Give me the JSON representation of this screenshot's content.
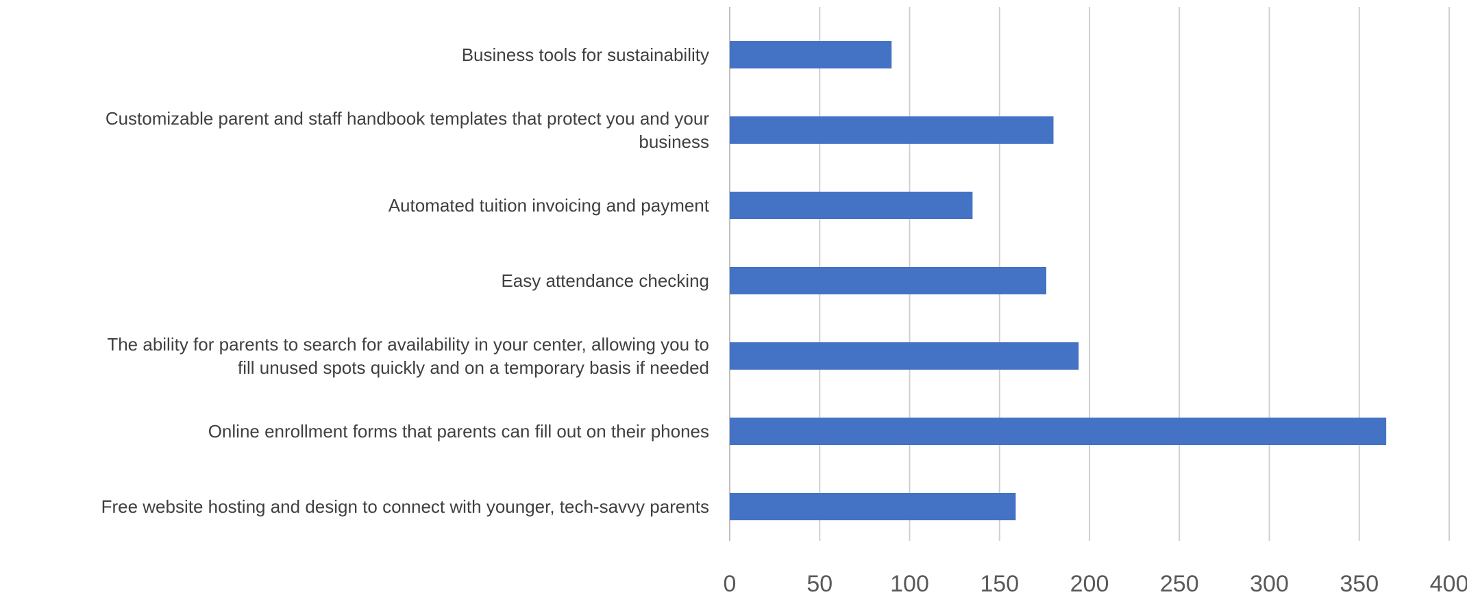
{
  "chart_data": {
    "type": "bar",
    "orientation": "horizontal",
    "categories": [
      "Business tools for sustainability",
      "Customizable parent and staff handbook templates that protect you and your business",
      "Automated tuition invoicing and payment",
      "Easy attendance checking",
      "The ability for parents to search for availability in your center, allowing you to fill unused spots quickly and on a temporary basis if needed",
      "Online enrollment forms that parents can fill out on their phones",
      "Free website hosting and design to connect with younger, tech-savvy parents"
    ],
    "category_label_lines": [
      [
        "Business tools for sustainability"
      ],
      [
        "Customizable parent and staff handbook templates that protect you and your",
        "business"
      ],
      [
        "Automated tuition invoicing and payment"
      ],
      [
        "Easy attendance checking"
      ],
      [
        "The ability for parents to search for availability in your center, allowing you to",
        "fill unused spots quickly and on a temporary basis if needed"
      ],
      [
        "Online enrollment forms that parents can fill out on their phones"
      ],
      [
        "Free website hosting and design to connect with younger, tech-savvy parents"
      ]
    ],
    "values": [
      90,
      180,
      135,
      176,
      194,
      365,
      159
    ],
    "xlim": [
      0,
      400
    ],
    "xticks": [
      0,
      50,
      100,
      150,
      200,
      250,
      300,
      350,
      400
    ],
    "tick_labels": [
      "0",
      "50",
      "100",
      "150",
      "200",
      "250",
      "300",
      "350",
      "400"
    ],
    "title": "",
    "xlabel": "",
    "ylabel": "",
    "grid": "vertical",
    "legend": "none",
    "bar_color": "#4472c4"
  }
}
